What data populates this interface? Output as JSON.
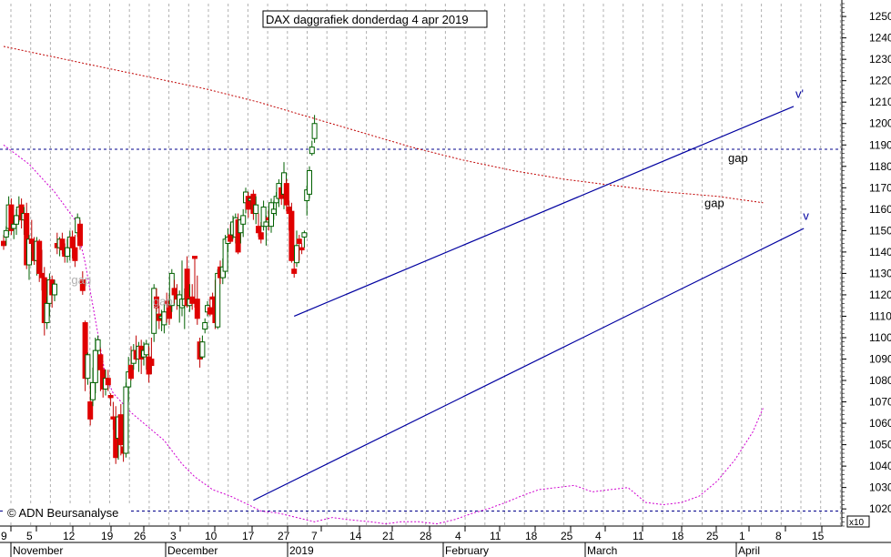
{
  "chart_data": {
    "type": "candlestick",
    "title": "DAX daggrafiek donderdag 4 apr 2019",
    "credit": "© ADN Beursanalyse",
    "y_unit_label": "x10",
    "ylim": [
      1012,
      1256
    ],
    "y_ticks": [
      1020,
      1030,
      1040,
      1050,
      1060,
      1070,
      1080,
      1090,
      1100,
      1110,
      1120,
      1130,
      1140,
      1150,
      1160,
      1170,
      1180,
      1190,
      1200,
      1210,
      1220,
      1230,
      1240,
      1250
    ],
    "x_day_labels": [
      "9",
      "5",
      "12",
      "19",
      "26",
      "3",
      "10",
      "17",
      "27",
      "7",
      "14",
      "21",
      "28",
      "4",
      "11",
      "18",
      "25",
      "4",
      "11",
      "18",
      "25",
      "1",
      "8",
      "15"
    ],
    "x_month_labels": [
      "November",
      "December",
      "2019",
      "February",
      "March",
      "April"
    ],
    "grid": true,
    "candles": [
      [
        1145,
        1148,
        1141,
        1143
      ],
      [
        1147,
        1152,
        1143,
        1150
      ],
      [
        1151,
        1166,
        1148,
        1162
      ],
      [
        1162,
        1165,
        1148,
        1150
      ],
      [
        1151,
        1155,
        1146,
        1153
      ],
      [
        1153,
        1160,
        1148,
        1157
      ],
      [
        1157,
        1166,
        1154,
        1161
      ],
      [
        1162,
        1165,
        1151,
        1155
      ],
      [
        1155,
        1161,
        1148,
        1158
      ],
      [
        1158,
        1163,
        1132,
        1134
      ],
      [
        1134,
        1148,
        1127,
        1146
      ],
      [
        1146,
        1155,
        1140,
        1144
      ],
      [
        1144,
        1147,
        1134,
        1136
      ],
      [
        1136,
        1147,
        1129,
        1145
      ],
      [
        1145,
        1146,
        1126,
        1130
      ],
      [
        1130,
        1141,
        1122,
        1128
      ],
      [
        1128,
        1133,
        1101,
        1107
      ],
      [
        1107,
        1119,
        1104,
        1116
      ],
      [
        1116,
        1130,
        1110,
        1127
      ],
      [
        1127,
        1129,
        1114,
        1120
      ],
      [
        1120,
        1127,
        1117,
        1125
      ],
      [
        1144,
        1149,
        1139,
        1142
      ],
      [
        1142,
        1147,
        1138,
        1146
      ],
      [
        1146,
        1149,
        1139,
        1141
      ],
      [
        1141,
        1144,
        1135,
        1138
      ],
      [
        1138,
        1146,
        1135,
        1142
      ],
      [
        1142,
        1150,
        1136,
        1147
      ],
      [
        1147,
        1150,
        1137,
        1142
      ],
      [
        1142,
        1148,
        1133,
        1136
      ],
      [
        1149,
        1158,
        1147,
        1156
      ],
      [
        1153,
        1155,
        1141,
        1143
      ],
      [
        1127,
        1131,
        1120,
        1122
      ],
      [
        1107,
        1108,
        1075,
        1081
      ],
      [
        1081,
        1093,
        1078,
        1092
      ],
      [
        1070,
        1079,
        1059,
        1062
      ],
      [
        1071,
        1086,
        1068,
        1079
      ],
      [
        1079,
        1100,
        1074,
        1094
      ],
      [
        1094,
        1101,
        1092,
        1099
      ],
      [
        1092,
        1095,
        1075,
        1085
      ],
      [
        1085,
        1086,
        1072,
        1076
      ],
      [
        1076,
        1085,
        1073,
        1081
      ],
      [
        1081,
        1085,
        1075,
        1078
      ],
      [
        1073,
        1074,
        1068,
        1072
      ],
      [
        1063,
        1070,
        1057,
        1062
      ],
      [
        1062,
        1068,
        1041,
        1044
      ],
      [
        1053,
        1064,
        1043,
        1063
      ],
      [
        1064,
        1069,
        1045,
        1050
      ],
      [
        1049,
        1054,
        1042,
        1046
      ],
      [
        1046,
        1079,
        1044,
        1077
      ],
      [
        1077,
        1091,
        1070,
        1084
      ],
      [
        1087,
        1096,
        1080,
        1081
      ],
      [
        1088,
        1097,
        1085,
        1094
      ],
      [
        1094,
        1101,
        1089,
        1090
      ],
      [
        1090,
        1098,
        1084,
        1096
      ],
      [
        1096,
        1099,
        1083,
        1090
      ],
      [
        1091,
        1098,
        1087,
        1094
      ],
      [
        1092,
        1099,
        1085,
        1097
      ],
      [
        1091,
        1096,
        1079,
        1083
      ],
      [
        1090,
        1100,
        1083,
        1087
      ],
      [
        1102,
        1125,
        1098,
        1123
      ],
      [
        1119,
        1123,
        1112,
        1114
      ],
      [
        1111,
        1115,
        1104,
        1108
      ],
      [
        1109,
        1113,
        1103,
        1110
      ],
      [
        1106,
        1116,
        1102,
        1112
      ],
      [
        1117,
        1121,
        1107,
        1116
      ],
      [
        1116,
        1120,
        1106,
        1109
      ],
      [
        1115,
        1132,
        1112,
        1130
      ],
      [
        1123,
        1127,
        1116,
        1120
      ],
      [
        1120,
        1125,
        1113,
        1118
      ],
      [
        1115,
        1122,
        1107,
        1120
      ],
      [
        1114,
        1136,
        1110,
        1118
      ],
      [
        1115,
        1123,
        1104,
        1118
      ],
      [
        1132,
        1138,
        1114,
        1115
      ],
      [
        1115,
        1125,
        1112,
        1118
      ],
      [
        1119,
        1125,
        1113,
        1116
      ],
      [
        1138,
        1138,
        1114,
        1137
      ],
      [
        1118,
        1129,
        1106,
        1109
      ],
      [
        1098,
        1100,
        1086,
        1090
      ],
      [
        1091,
        1101,
        1090,
        1098
      ],
      [
        1104,
        1109,
        1102,
        1107
      ],
      [
        1112,
        1117,
        1110,
        1115
      ],
      [
        1114,
        1119,
        1110,
        1111
      ],
      [
        1119,
        1121,
        1113,
        1118
      ],
      [
        1119,
        1127,
        1104,
        1107
      ],
      [
        1105,
        1132,
        1104,
        1130
      ],
      [
        1133,
        1136,
        1125,
        1128
      ],
      [
        1128,
        1137,
        1125,
        1133
      ],
      [
        1131,
        1148,
        1128,
        1146
      ],
      [
        1144,
        1151,
        1140,
        1147
      ],
      [
        1148,
        1153,
        1144,
        1145
      ],
      [
        1148,
        1157,
        1146,
        1154
      ],
      [
        1147,
        1158,
        1144,
        1156
      ],
      [
        1155,
        1158,
        1139,
        1140
      ],
      [
        1149,
        1156,
        1144,
        1155
      ],
      [
        1153,
        1160,
        1147,
        1157
      ],
      [
        1163,
        1170,
        1158,
        1168
      ],
      [
        1166,
        1168,
        1156,
        1160
      ],
      [
        1164,
        1166,
        1160,
        1165
      ],
      [
        1167,
        1169,
        1155,
        1158
      ],
      [
        1158,
        1166,
        1153,
        1162
      ],
      [
        1152,
        1158,
        1147,
        1149
      ],
      [
        1149,
        1154,
        1144,
        1146
      ],
      [
        1152,
        1164,
        1150,
        1161
      ],
      [
        1152,
        1157,
        1143,
        1154
      ],
      [
        1156,
        1160,
        1150,
        1155
      ],
      [
        1152,
        1165,
        1149,
        1163
      ],
      [
        1158,
        1164,
        1155,
        1160
      ],
      [
        1163,
        1168,
        1157,
        1166
      ],
      [
        1165,
        1174,
        1161,
        1172
      ],
      [
        1170,
        1171,
        1162,
        1165
      ],
      [
        1167,
        1182,
        1160,
        1177
      ],
      [
        1172,
        1174,
        1159,
        1162
      ],
      [
        1161,
        1164,
        1150,
        1158
      ],
      [
        1159,
        1163,
        1135,
        1136
      ],
      [
        1132,
        1135,
        1128,
        1130
      ],
      [
        1135,
        1150,
        1133,
        1143
      ],
      [
        1146,
        1148,
        1136,
        1144
      ],
      [
        1142,
        1144,
        1139,
        1141
      ],
      [
        1147,
        1150,
        1142,
        1149
      ],
      [
        1164,
        1171,
        1157,
        1169
      ],
      [
        1167,
        1180,
        1165,
        1178
      ],
      [
        1186,
        1192,
        1185,
        1189
      ],
      [
        1193,
        1204,
        1191,
        1200
      ]
    ],
    "sma_short": [
      [
        0,
        1190
      ],
      [
        10,
        1181
      ],
      [
        20,
        1168
      ],
      [
        28,
        1155
      ],
      [
        32,
        1135
      ],
      [
        35,
        1115
      ],
      [
        38,
        1095
      ],
      [
        40,
        1082
      ],
      [
        43,
        1074
      ],
      [
        50,
        1065
      ],
      [
        57,
        1058
      ],
      [
        63,
        1052
      ],
      [
        70,
        1041
      ],
      [
        75,
        1035
      ],
      [
        82,
        1029
      ],
      [
        89,
        1026
      ],
      [
        96,
        1022
      ],
      [
        101,
        1019
      ],
      [
        108,
        1018
      ],
      [
        115,
        1016
      ],
      [
        122,
        1014
      ],
      [
        129,
        1016
      ],
      [
        135,
        1015
      ],
      [
        144,
        1014
      ],
      [
        150,
        1013
      ],
      [
        156,
        1014
      ],
      [
        163,
        1014
      ],
      [
        170,
        1013
      ],
      [
        177,
        1015
      ],
      [
        184,
        1018
      ],
      [
        190,
        1020
      ],
      [
        197,
        1023
      ],
      [
        203,
        1026
      ],
      [
        210,
        1029
      ],
      [
        217,
        1030
      ],
      [
        224,
        1031
      ],
      [
        231,
        1028
      ],
      [
        238,
        1029
      ],
      [
        245,
        1030
      ],
      [
        249,
        1026
      ],
      [
        252,
        1023
      ],
      [
        259,
        1022
      ],
      [
        266,
        1023
      ],
      [
        273,
        1026
      ],
      [
        280,
        1033
      ],
      [
        287,
        1043
      ],
      [
        294,
        1056
      ],
      [
        298,
        1067
      ]
    ],
    "sma_long": [
      [
        0,
        1236
      ],
      [
        20,
        1231
      ],
      [
        40,
        1226
      ],
      [
        60,
        1221
      ],
      [
        80,
        1216
      ],
      [
        100,
        1210
      ],
      [
        120,
        1203
      ],
      [
        140,
        1196
      ],
      [
        160,
        1189
      ],
      [
        180,
        1183
      ],
      [
        200,
        1178
      ],
      [
        220,
        1174
      ],
      [
        240,
        1171
      ],
      [
        260,
        1168
      ],
      [
        280,
        1166
      ],
      [
        298,
        1163
      ]
    ],
    "horizontal_lines": [
      1188,
      1019
    ],
    "channel_upper": [
      [
        1110,
        1208
      ]
    ],
    "channel_lower": [
      [
        1024,
        1151
      ]
    ],
    "annotations": [
      {
        "text": "gap",
        "value": 1125
      },
      {
        "text": "gap",
        "value": 1115
      },
      {
        "text": "gap",
        "value": 1182
      },
      {
        "text": "gap",
        "value": 1161
      },
      {
        "text": "v'",
        "value": 1212
      },
      {
        "text": "v",
        "value": 1155
      }
    ]
  }
}
